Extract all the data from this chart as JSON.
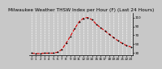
{
  "title": "Milwaukee Weather THSW Index per Hour (F) (Last 24 Hours)",
  "title_fontsize": 4.2,
  "background_color": "#c8c8c8",
  "plot_bg_color": "#c8c8c8",
  "grid_color": "#ffffff",
  "line_color": "#dd0000",
  "marker_color": "#000000",
  "hours": [
    0,
    1,
    2,
    3,
    4,
    5,
    6,
    7,
    8,
    9,
    10,
    11,
    12,
    13,
    14,
    15,
    16,
    17,
    18,
    19,
    20,
    21,
    22,
    23
  ],
  "values": [
    30,
    29,
    29,
    30,
    30,
    30,
    32,
    38,
    52,
    68,
    85,
    100,
    108,
    110,
    105,
    95,
    87,
    80,
    72,
    65,
    58,
    52,
    47,
    44
  ],
  "ylim": [
    25,
    120
  ],
  "yticks": [
    30,
    50,
    70,
    90,
    110
  ],
  "ytick_labels": [
    "30",
    "50",
    "70",
    "90",
    "110"
  ],
  "xlabel_fontsize": 3.0,
  "tick_fontsize": 3.0,
  "line_width": 0.8,
  "marker_size": 2.0,
  "marker_edge_width": 0.6
}
